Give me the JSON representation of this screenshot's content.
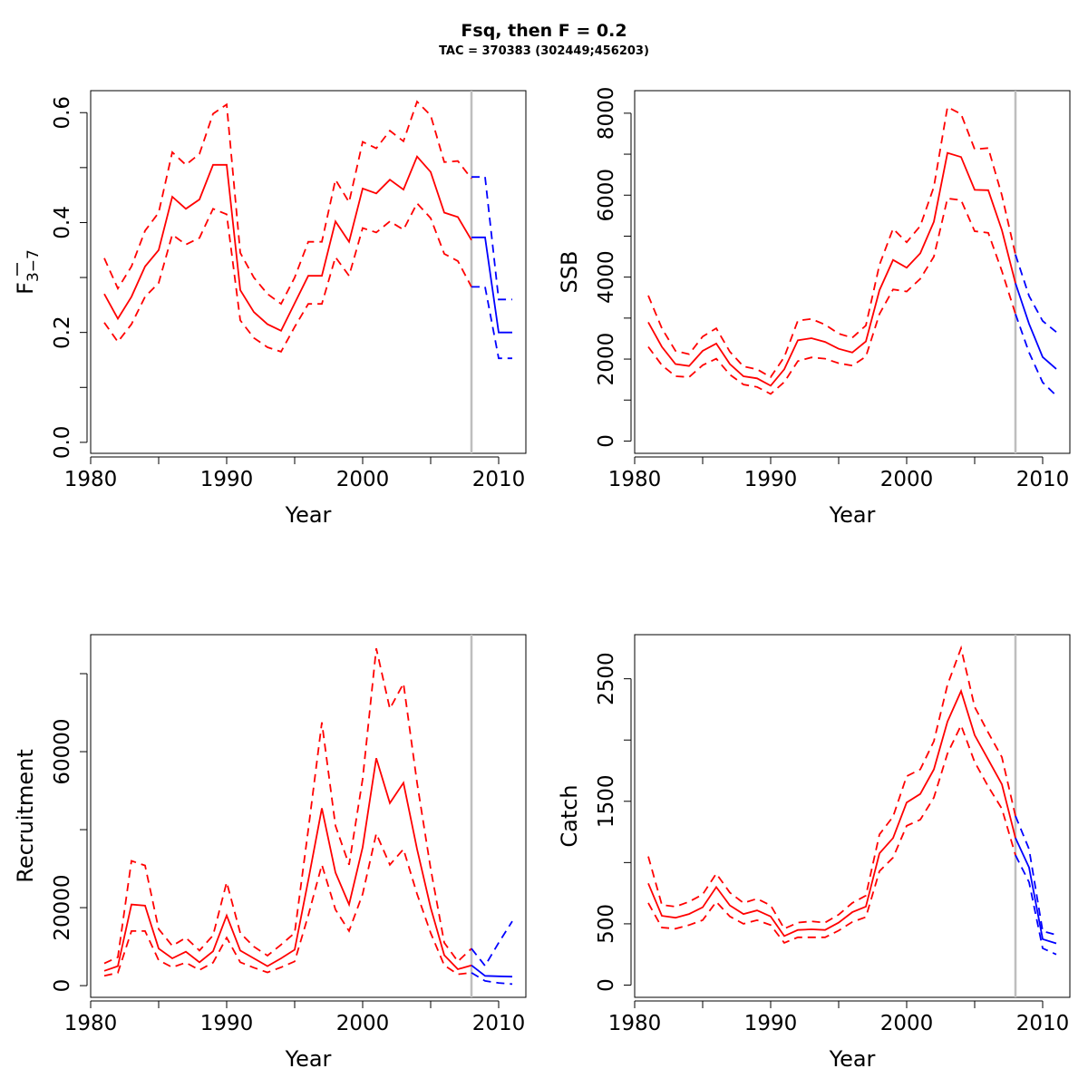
{
  "title": "Fsq, then F = 0.2",
  "subtitle": "TAC = 370383 (302449;456203)",
  "colors": {
    "historic": "#ff0000",
    "forecast": "#0000ff",
    "reference": "#bebebe"
  },
  "chart_data": [
    {
      "type": "line",
      "ylabel": "F",
      "ylabel_sub": "3-7",
      "xlabel": "Year",
      "xlim": [
        1980,
        2012
      ],
      "ylim": [
        -0.02,
        0.64
      ],
      "xticks": [
        1980,
        1985,
        1990,
        1995,
        2000,
        2005,
        2010
      ],
      "xtick_labels": [
        "1980",
        "",
        "1990",
        "",
        "2000",
        "",
        "2010"
      ],
      "yticks": [
        0.0,
        0.1,
        0.2,
        0.3,
        0.4,
        0.5,
        0.6
      ],
      "ytick_labels": [
        "0.0",
        "",
        "0.2",
        "",
        "0.4",
        "",
        "0.6"
      ],
      "reference_year": 2008,
      "x": [
        1981,
        1982,
        1983,
        1984,
        1985,
        1986,
        1987,
        1988,
        1989,
        1990,
        1991,
        1992,
        1993,
        1994,
        1995,
        1996,
        1997,
        1998,
        1999,
        2000,
        2001,
        2002,
        2003,
        2004,
        2005,
        2006,
        2007,
        2008
      ],
      "series": [
        {
          "color": "#ff0000",
          "style": "solid",
          "values": [
            0.27,
            0.225,
            0.265,
            0.32,
            0.35,
            0.447,
            0.425,
            0.442,
            0.505,
            0.505,
            0.277,
            0.237,
            0.215,
            0.203,
            0.253,
            0.303,
            0.303,
            0.402,
            0.365,
            0.462,
            0.453,
            0.478,
            0.46,
            0.52,
            0.492,
            0.418,
            0.41,
            0.368
          ]
        },
        {
          "color": "#ff0000",
          "style": "dashed",
          "values": [
            0.335,
            0.28,
            0.32,
            0.385,
            0.418,
            0.528,
            0.505,
            0.525,
            0.598,
            0.615,
            0.345,
            0.3,
            0.27,
            0.252,
            0.3,
            0.365,
            0.365,
            0.478,
            0.437,
            0.547,
            0.535,
            0.567,
            0.548,
            0.62,
            0.595,
            0.51,
            0.512,
            0.48
          ]
        },
        {
          "color": "#ff0000",
          "style": "dashed",
          "values": [
            0.218,
            0.183,
            0.215,
            0.265,
            0.29,
            0.378,
            0.36,
            0.372,
            0.425,
            0.415,
            0.222,
            0.19,
            0.173,
            0.165,
            0.21,
            0.252,
            0.252,
            0.337,
            0.303,
            0.39,
            0.382,
            0.402,
            0.387,
            0.435,
            0.408,
            0.343,
            0.33,
            0.283
          ]
        },
        {
          "color": "#0000ff",
          "style": "solid",
          "x": [
            2008,
            2009,
            2010,
            2011
          ],
          "values": [
            0.373,
            0.373,
            0.2,
            0.2
          ]
        },
        {
          "color": "#0000ff",
          "style": "dashed",
          "x": [
            2008,
            2009,
            2010,
            2011
          ],
          "values": [
            0.483,
            0.483,
            0.26,
            0.26
          ]
        },
        {
          "color": "#0000ff",
          "style": "dashed",
          "x": [
            2008,
            2009,
            2010,
            2011
          ],
          "values": [
            0.283,
            0.283,
            0.153,
            0.153
          ]
        }
      ]
    },
    {
      "type": "line",
      "ylabel": "SSB",
      "xlabel": "Year",
      "xlim": [
        1980,
        2012
      ],
      "ylim": [
        -300,
        8550
      ],
      "xticks": [
        1980,
        1985,
        1990,
        1995,
        2000,
        2005,
        2010
      ],
      "xtick_labels": [
        "1980",
        "",
        "1990",
        "",
        "2000",
        "",
        "2010"
      ],
      "yticks": [
        0,
        1000,
        2000,
        3000,
        4000,
        5000,
        6000,
        7000,
        8000
      ],
      "ytick_labels": [
        "0",
        "",
        "2000",
        "",
        "4000",
        "",
        "6000",
        "",
        "8000"
      ],
      "reference_year": 2008,
      "x": [
        1981,
        1982,
        1983,
        1984,
        1985,
        1986,
        1987,
        1988,
        1989,
        1990,
        1991,
        1992,
        1993,
        1994,
        1995,
        1996,
        1997,
        1998,
        1999,
        2000,
        2001,
        2002,
        2003,
        2004,
        2005,
        2006,
        2007,
        2008
      ],
      "series": [
        {
          "color": "#ff0000",
          "style": "solid",
          "values": [
            2900,
            2300,
            1880,
            1830,
            2200,
            2380,
            1880,
            1580,
            1530,
            1350,
            1750,
            2460,
            2510,
            2420,
            2250,
            2160,
            2430,
            3680,
            4420,
            4230,
            4580,
            5350,
            7030,
            6930,
            6130,
            6120,
            5150,
            3850
          ]
        },
        {
          "color": "#ff0000",
          "style": "dashed",
          "values": [
            3550,
            2750,
            2200,
            2120,
            2550,
            2750,
            2180,
            1820,
            1750,
            1560,
            2050,
            2940,
            2980,
            2840,
            2620,
            2520,
            2820,
            4300,
            5180,
            4850,
            5250,
            6200,
            8150,
            7980,
            7120,
            7150,
            6000,
            4550
          ]
        },
        {
          "color": "#ff0000",
          "style": "dashed",
          "values": [
            2300,
            1850,
            1580,
            1560,
            1850,
            2010,
            1620,
            1380,
            1320,
            1150,
            1440,
            1950,
            2040,
            2010,
            1900,
            1840,
            2060,
            3100,
            3700,
            3650,
            3960,
            4500,
            5920,
            5880,
            5120,
            5080,
            4150,
            3100
          ]
        },
        {
          "color": "#0000ff",
          "style": "solid",
          "x": [
            2008,
            2009,
            2010,
            2011
          ],
          "values": [
            3850,
            2860,
            2050,
            1760
          ]
        },
        {
          "color": "#0000ff",
          "style": "dashed",
          "x": [
            2008,
            2009,
            2010,
            2011
          ],
          "values": [
            4550,
            3540,
            2930,
            2660
          ]
        },
        {
          "color": "#0000ff",
          "style": "dashed",
          "x": [
            2008,
            2009,
            2010,
            2011
          ],
          "values": [
            3100,
            2160,
            1430,
            1110
          ]
        }
      ]
    },
    {
      "type": "line",
      "ylabel": "Recruitment",
      "xlabel": "Year",
      "xlim": [
        1980,
        2012
      ],
      "ylim": [
        -3000,
        90000
      ],
      "xticks": [
        1980,
        1985,
        1990,
        1995,
        2000,
        2005,
        2010
      ],
      "xtick_labels": [
        "1980",
        "",
        "1990",
        "",
        "2000",
        "",
        "2010"
      ],
      "yticks": [
        0,
        20000,
        40000,
        60000,
        80000
      ],
      "ytick_labels": [
        "0",
        "20000",
        "",
        "60000",
        ""
      ],
      "reference_year": 2008,
      "x": [
        1981,
        1982,
        1983,
        1984,
        1985,
        1986,
        1987,
        1988,
        1989,
        1990,
        1991,
        1992,
        1993,
        1994,
        1995,
        1996,
        1997,
        1998,
        1999,
        2000,
        2001,
        2002,
        2003,
        2004,
        2005,
        2006,
        2007,
        2008
      ],
      "series": [
        {
          "color": "#ff0000",
          "style": "solid",
          "values": [
            3800,
            5000,
            20800,
            20500,
            9500,
            7000,
            8700,
            6000,
            8800,
            18000,
            9000,
            7000,
            5000,
            7000,
            9200,
            27000,
            45500,
            29000,
            20800,
            35500,
            58300,
            46800,
            52000,
            35000,
            20000,
            7800,
            4200,
            5200
          ]
        },
        {
          "color": "#ff0000",
          "style": "dashed",
          "values": [
            5700,
            7300,
            32000,
            30800,
            14500,
            10200,
            12300,
            9000,
            12900,
            26500,
            13500,
            10000,
            7700,
            10500,
            13500,
            40000,
            67500,
            41000,
            31000,
            53000,
            86500,
            71000,
            77500,
            52000,
            30000,
            11000,
            6200,
            9500
          ]
        },
        {
          "color": "#ff0000",
          "style": "dashed",
          "values": [
            2500,
            3300,
            14000,
            14000,
            6500,
            4700,
            5900,
            4000,
            5900,
            12300,
            6000,
            4600,
            3400,
            4700,
            6200,
            18000,
            31000,
            19500,
            14000,
            23500,
            39000,
            31000,
            35000,
            23500,
            13500,
            5200,
            2900,
            3300
          ]
        },
        {
          "color": "#0000ff",
          "style": "solid",
          "x": [
            2008,
            2009,
            2010,
            2011
          ],
          "values": [
            5200,
            2500,
            2400,
            2300
          ]
        },
        {
          "color": "#0000ff",
          "style": "dashed",
          "x": [
            2008,
            2009,
            2010,
            2011
          ],
          "values": [
            9500,
            5100,
            11000,
            16500
          ]
        },
        {
          "color": "#0000ff",
          "style": "dashed",
          "x": [
            2008,
            2009,
            2010,
            2011
          ],
          "values": [
            3300,
            1200,
            700,
            400
          ]
        }
      ]
    },
    {
      "type": "line",
      "ylabel": "Catch",
      "xlabel": "Year",
      "xlim": [
        1980,
        2012
      ],
      "ylim": [
        -100,
        2860
      ],
      "xticks": [
        1980,
        1985,
        1990,
        1995,
        2000,
        2005,
        2010
      ],
      "xtick_labels": [
        "1980",
        "",
        "1990",
        "",
        "2000",
        "",
        "2010"
      ],
      "yticks": [
        0,
        500,
        1000,
        1500,
        2000,
        2500
      ],
      "ytick_labels": [
        "0",
        "500",
        "",
        "1500",
        "",
        "2500"
      ],
      "reference_year": 2008,
      "x": [
        1981,
        1982,
        1983,
        1984,
        1985,
        1986,
        1987,
        1988,
        1989,
        1990,
        1991,
        1992,
        1993,
        1994,
        1995,
        1996,
        1997,
        1998,
        1999,
        2000,
        2001,
        2002,
        2003,
        2004,
        2005,
        2006,
        2007,
        2008
      ],
      "series": [
        {
          "color": "#ff0000",
          "style": "solid",
          "values": [
            830,
            565,
            550,
            580,
            635,
            800,
            650,
            580,
            610,
            560,
            400,
            450,
            455,
            450,
            510,
            595,
            640,
            1075,
            1200,
            1490,
            1560,
            1760,
            2150,
            2400,
            2040,
            1840,
            1640,
            1200
          ]
        },
        {
          "color": "#ff0000",
          "style": "dashed",
          "values": [
            1050,
            655,
            640,
            680,
            740,
            910,
            755,
            670,
            705,
            650,
            460,
            510,
            520,
            510,
            575,
            670,
            730,
            1230,
            1375,
            1705,
            1760,
            1990,
            2450,
            2750,
            2270,
            2060,
            1860,
            1380
          ]
        },
        {
          "color": "#ff0000",
          "style": "dashed",
          "values": [
            670,
            470,
            460,
            490,
            530,
            680,
            560,
            500,
            530,
            490,
            345,
            390,
            390,
            390,
            445,
            515,
            555,
            930,
            1040,
            1300,
            1350,
            1530,
            1890,
            2120,
            1820,
            1620,
            1440,
            1060
          ]
        },
        {
          "color": "#0000ff",
          "style": "solid",
          "x": [
            2008,
            2009,
            2010,
            2011
          ],
          "values": [
            1200,
            960,
            375,
            340
          ]
        },
        {
          "color": "#0000ff",
          "style": "dashed",
          "x": [
            2008,
            2009,
            2010,
            2011
          ],
          "values": [
            1380,
            1110,
            440,
            410
          ]
        },
        {
          "color": "#0000ff",
          "style": "dashed",
          "x": [
            2008,
            2009,
            2010,
            2011
          ],
          "values": [
            1060,
            840,
            300,
            250
          ]
        }
      ]
    }
  ]
}
